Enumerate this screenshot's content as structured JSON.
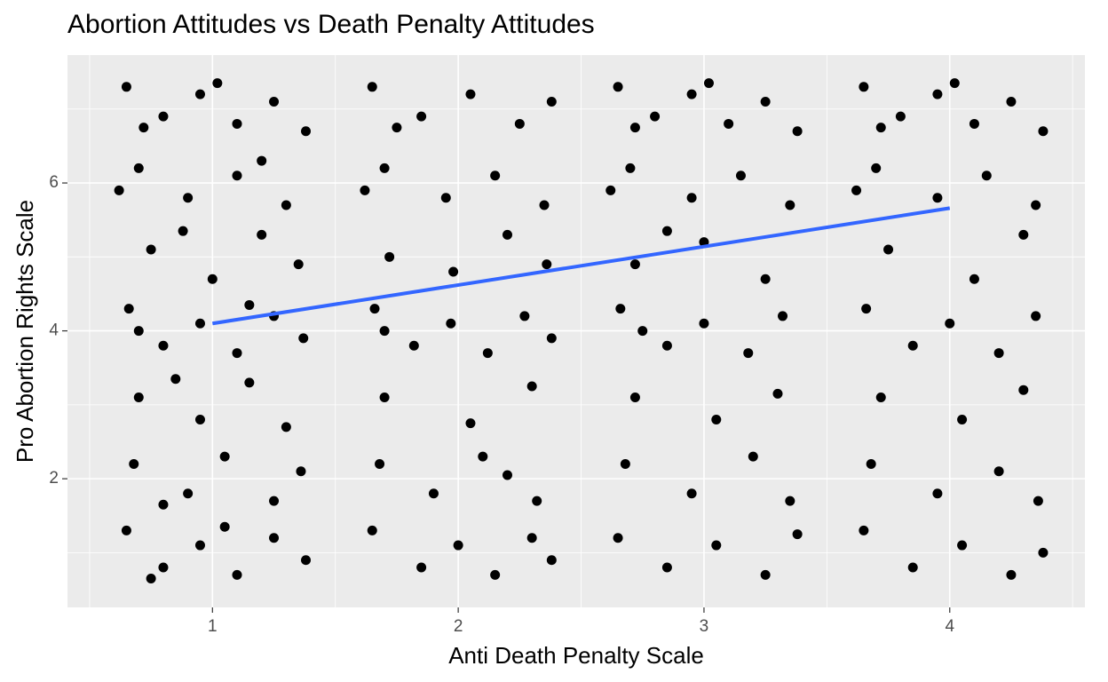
{
  "chart_data": {
    "type": "scatter",
    "title": "Abortion Attitudes vs Death Penalty Attitudes",
    "x_label": "Anti Death Penalty Scale",
    "y_label": "Pro Abortion Rights Scale",
    "xlim": [
      0.41,
      4.55
    ],
    "ylim": [
      0.26,
      7.73
    ],
    "xticks": [
      1,
      2,
      3,
      4
    ],
    "yticks": [
      2,
      4,
      6
    ],
    "minor_xticks": [
      0.5,
      1.5,
      2.5,
      3.5,
      4.5
    ],
    "minor_yticks": [
      1,
      3,
      5,
      7
    ],
    "grid": true,
    "point_color": "#000000",
    "x": [
      0.65,
      0.8,
      0.95,
      1.1,
      1.25,
      1.38,
      0.72,
      1.02,
      0.7,
      0.9,
      1.1,
      1.3,
      1.2,
      0.62,
      0.75,
      1.0,
      1.2,
      1.35,
      0.88,
      0.66,
      0.8,
      0.95,
      1.1,
      1.25,
      1.37,
      0.7,
      1.15,
      0.7,
      0.95,
      1.15,
      1.3,
      0.85,
      0.68,
      0.9,
      1.05,
      1.25,
      1.36,
      0.8,
      0.65,
      0.8,
      0.95,
      1.1,
      1.25,
      1.38,
      0.75,
      1.05,
      1.65,
      1.85,
      2.05,
      2.25,
      2.38,
      1.75,
      1.7,
      1.95,
      2.15,
      2.35,
      1.62,
      1.72,
      1.98,
      2.2,
      2.36,
      1.66,
      1.82,
      1.97,
      2.12,
      2.27,
      2.38,
      1.7,
      1.7,
      2.05,
      2.3,
      1.68,
      1.9,
      2.1,
      2.32,
      2.2,
      1.65,
      1.85,
      2.0,
      2.15,
      2.3,
      2.38,
      2.65,
      2.8,
      2.95,
      3.1,
      3.25,
      3.38,
      2.72,
      3.02,
      2.7,
      2.95,
      3.15,
      3.35,
      2.62,
      2.72,
      3.0,
      3.25,
      2.85,
      2.66,
      2.85,
      3.0,
      3.18,
      3.32,
      2.75,
      2.72,
      3.05,
      3.3,
      2.68,
      2.95,
      3.2,
      3.35,
      2.65,
      2.85,
      3.05,
      3.25,
      3.38,
      3.65,
      3.8,
      3.95,
      4.1,
      4.25,
      4.38,
      3.72,
      4.02,
      3.7,
      3.95,
      4.15,
      4.35,
      3.62,
      3.75,
      4.1,
      4.3,
      3.66,
      3.85,
      4.0,
      4.2,
      4.35,
      3.72,
      4.05,
      4.3,
      3.68,
      3.95,
      4.2,
      4.36,
      3.65,
      3.85,
      4.05,
      4.25,
      4.38
    ],
    "y": [
      7.3,
      6.9,
      7.2,
      6.8,
      7.1,
      6.7,
      6.75,
      7.35,
      6.2,
      5.8,
      6.1,
      5.7,
      6.3,
      5.9,
      5.1,
      4.7,
      5.3,
      4.9,
      5.35,
      4.3,
      3.8,
      4.1,
      3.7,
      4.2,
      3.9,
      4.0,
      4.35,
      3.1,
      2.8,
      3.3,
      2.7,
      3.35,
      2.2,
      1.8,
      2.3,
      1.7,
      2.1,
      1.65,
      1.3,
      0.8,
      1.1,
      0.7,
      1.2,
      0.9,
      0.65,
      1.35,
      7.3,
      6.9,
      7.2,
      6.8,
      7.1,
      6.75,
      6.2,
      5.8,
      6.1,
      5.7,
      5.9,
      5.0,
      4.8,
      5.3,
      4.9,
      4.3,
      3.8,
      4.1,
      3.7,
      4.2,
      3.9,
      4.0,
      3.1,
      2.75,
      3.25,
      2.2,
      1.8,
      2.3,
      1.7,
      2.05,
      1.3,
      0.8,
      1.1,
      0.7,
      1.2,
      0.9,
      7.3,
      6.9,
      7.2,
      6.8,
      7.1,
      6.7,
      6.75,
      7.35,
      6.2,
      5.8,
      6.1,
      5.7,
      5.9,
      4.9,
      5.2,
      4.7,
      5.35,
      4.3,
      3.8,
      4.1,
      3.7,
      4.2,
      4.0,
      3.1,
      2.8,
      3.15,
      2.2,
      1.8,
      2.3,
      1.7,
      1.2,
      0.8,
      1.1,
      0.7,
      1.25,
      7.3,
      6.9,
      7.2,
      6.8,
      7.1,
      6.7,
      6.75,
      7.35,
      6.2,
      5.8,
      6.1,
      5.7,
      5.9,
      5.1,
      4.7,
      5.3,
      4.3,
      3.8,
      4.1,
      3.7,
      4.2,
      3.1,
      2.8,
      3.2,
      2.2,
      1.8,
      2.1,
      1.7,
      1.3,
      0.8,
      1.1,
      0.7,
      1.0
    ],
    "trend_line": {
      "x": [
        1,
        4
      ],
      "y": [
        4.1,
        5.66
      ],
      "color": "#3366ff"
    }
  }
}
